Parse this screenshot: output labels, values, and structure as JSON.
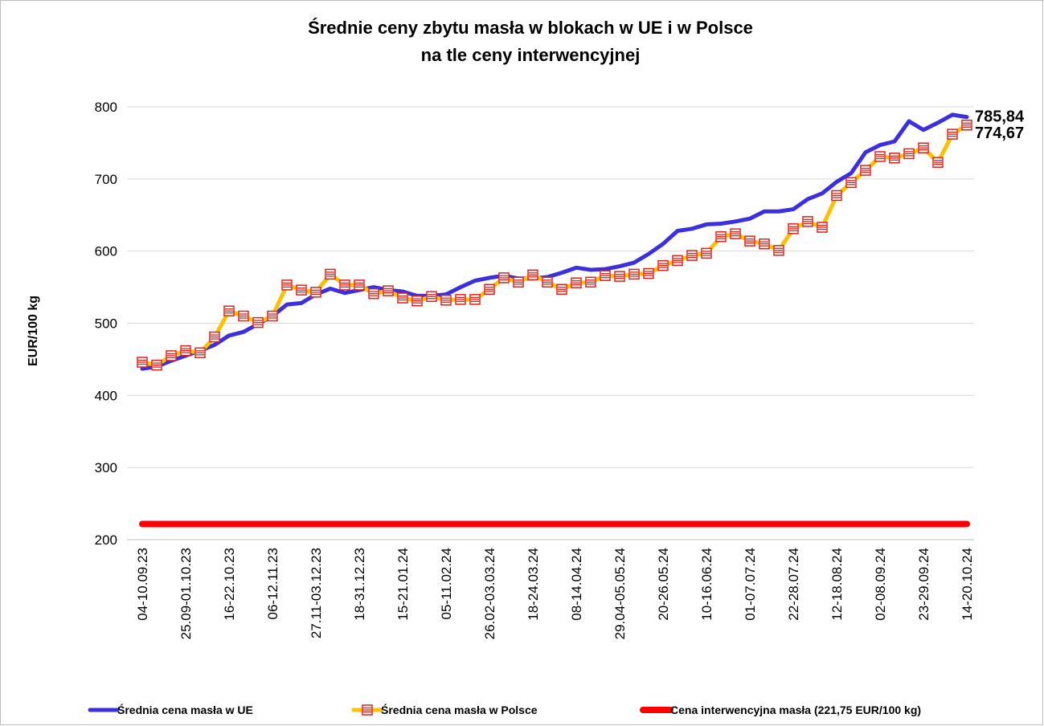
{
  "chart_data": {
    "type": "line",
    "title": [
      "Średnie ceny zbytu masła w blokach w UE i w Polsce",
      "na tle ceny interwencyjnej"
    ],
    "y_label": "EUR/100 kg",
    "categories": [
      "04-10.09.23",
      null,
      null,
      "25.09-01.10.23",
      null,
      null,
      "16-22.10.23",
      null,
      null,
      "06-12.11.23",
      null,
      null,
      "27.11-03.12.23",
      null,
      null,
      "18-31.12.23",
      null,
      null,
      "15-21.01.24",
      null,
      null,
      "05-11.02.24",
      null,
      null,
      "26.02-03.03.24",
      null,
      null,
      "18-24.03.24",
      null,
      null,
      "08-14.04.24",
      null,
      null,
      "29.04-05.05.24",
      null,
      null,
      "20-26.05.24",
      null,
      null,
      "10-16.06.24",
      null,
      null,
      "01-07.07.24",
      null,
      null,
      "22-28.07.24",
      null,
      null,
      "12-18.08.24",
      null,
      null,
      "02-08.09.24",
      null,
      null,
      "23-29.09.24",
      null,
      null,
      "14-20.10.24"
    ],
    "series": [
      {
        "name": "Średnia cena masła w UE",
        "color": "#3c2fe0",
        "marker": false,
        "values": [
          437,
          440,
          448,
          455,
          462,
          470,
          483,
          488,
          499,
          510,
          526,
          528,
          540,
          548,
          542,
          546,
          550,
          546,
          544,
          538,
          538,
          540,
          550,
          559,
          563,
          566,
          562,
          562,
          564,
          570,
          577,
          574,
          575,
          579,
          584,
          596,
          610,
          628,
          631,
          637,
          638,
          641,
          645,
          655,
          655,
          658,
          672,
          680,
          696,
          708,
          737,
          747,
          752,
          780,
          768,
          778,
          789,
          785.84
        ],
        "value_labels": [
          null,
          null,
          null,
          null,
          null,
          null,
          null,
          null,
          null,
          null,
          null,
          null,
          null,
          null,
          null,
          null,
          null,
          null,
          null,
          null,
          null,
          null,
          null,
          null,
          null,
          null,
          null,
          null,
          null,
          null,
          null,
          null,
          null,
          null,
          null,
          null,
          null,
          null,
          null,
          null,
          null,
          null,
          null,
          null,
          null,
          null,
          null,
          null,
          null,
          null,
          null,
          null,
          null,
          null,
          null,
          null,
          null,
          "785,84"
        ],
        "label_color": "#1f1fe0"
      },
      {
        "name": "Średnia cena masła w Polsce",
        "color": "#ffc000",
        "marker": true,
        "marker_color": "#e0201a",
        "values": [
          446,
          442,
          455,
          462,
          459,
          481,
          517,
          510,
          501,
          510,
          553,
          546,
          543,
          568,
          553,
          553,
          541,
          545,
          535,
          531,
          537,
          532,
          533,
          533,
          547,
          563,
          557,
          567,
          557,
          547,
          556,
          557,
          566,
          565,
          568,
          569,
          580,
          587,
          594,
          597,
          620,
          624,
          614,
          610,
          601,
          631,
          641,
          633,
          677,
          695,
          712,
          731,
          729,
          735,
          743,
          723,
          762,
          774.67
        ],
        "value_labels": [
          null,
          null,
          null,
          null,
          null,
          null,
          null,
          null,
          null,
          null,
          null,
          null,
          null,
          null,
          null,
          null,
          null,
          null,
          null,
          null,
          null,
          null,
          null,
          null,
          null,
          null,
          null,
          null,
          null,
          null,
          null,
          null,
          null,
          null,
          null,
          null,
          null,
          null,
          null,
          null,
          null,
          null,
          null,
          null,
          null,
          null,
          null,
          null,
          null,
          null,
          null,
          null,
          null,
          null,
          null,
          null,
          null,
          "774,67"
        ],
        "label_color": "#e01010"
      },
      {
        "name": "Cena interwencyjna masła (221,75 EUR/100 kg)",
        "color": "#ff0000",
        "marker": false,
        "values": [
          221.75,
          221.75,
          221.75,
          221.75,
          221.75,
          221.75,
          221.75,
          221.75,
          221.75,
          221.75,
          221.75,
          221.75,
          221.75,
          221.75,
          221.75,
          221.75,
          221.75,
          221.75,
          221.75,
          221.75,
          221.75,
          221.75,
          221.75,
          221.75,
          221.75,
          221.75,
          221.75,
          221.75,
          221.75,
          221.75,
          221.75,
          221.75,
          221.75,
          221.75,
          221.75,
          221.75,
          221.75,
          221.75,
          221.75,
          221.75,
          221.75,
          221.75,
          221.75,
          221.75,
          221.75,
          221.75,
          221.75,
          221.75,
          221.75,
          221.75,
          221.75,
          221.75,
          221.75,
          221.75,
          221.75,
          221.75,
          221.75,
          221.75
        ]
      }
    ],
    "ylim": [
      200,
      800
    ],
    "yticks": [
      200,
      300,
      400,
      500,
      600,
      700,
      800
    ],
    "grid": true,
    "legend": "bottom"
  }
}
